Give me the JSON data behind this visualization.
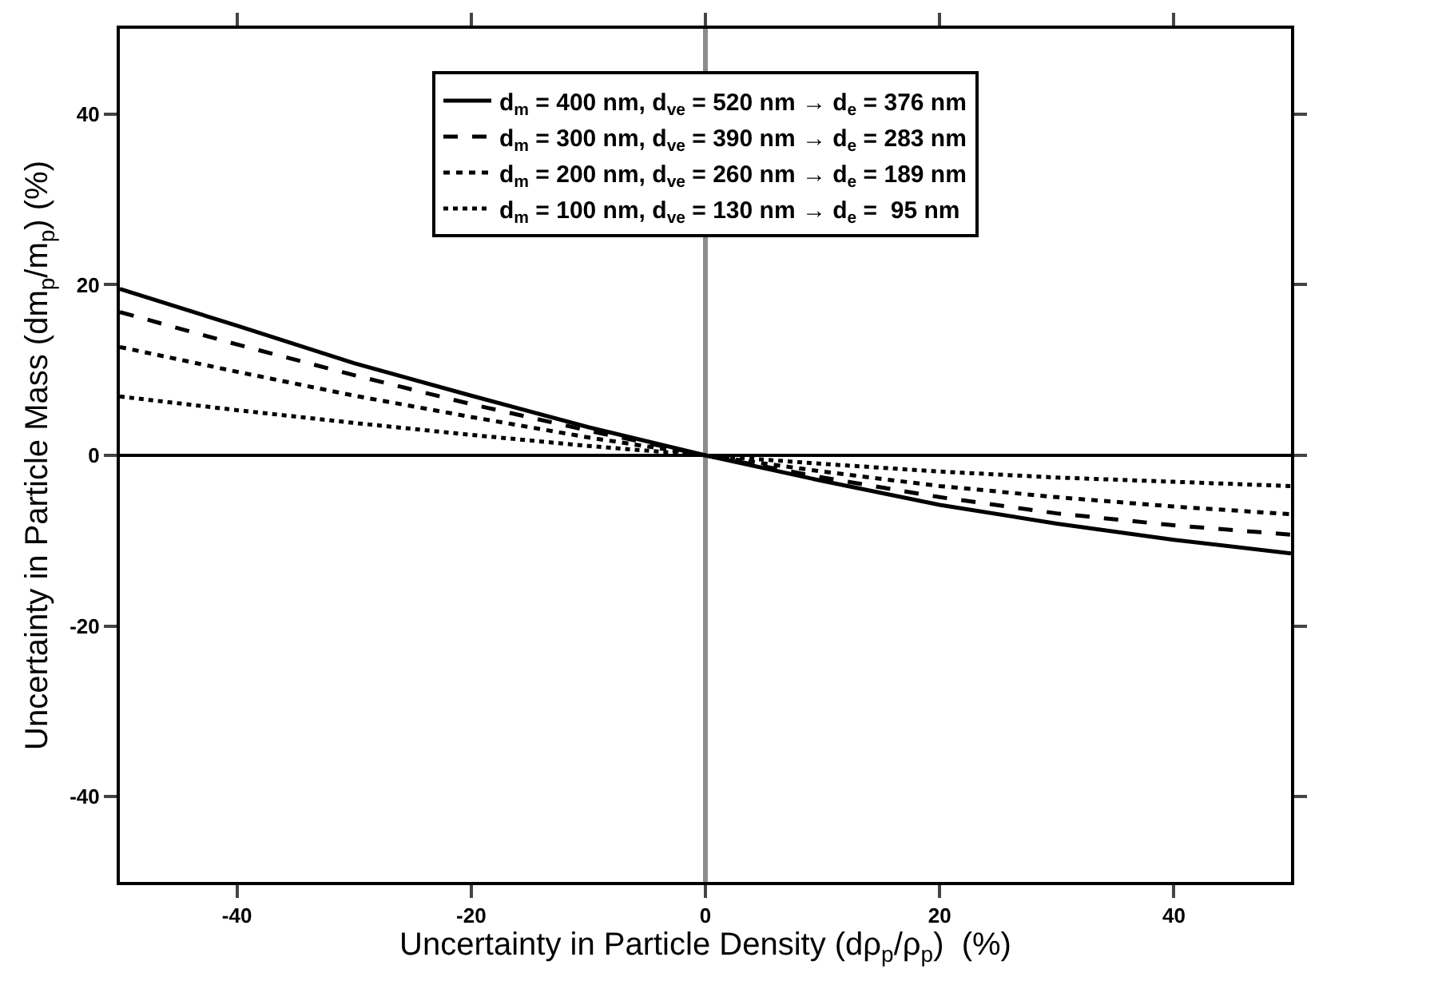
{
  "chart_data": {
    "type": "line",
    "xlabel": "Uncertainty in Particle Density (dρ$_{p}$/ρ$_{p}$)  (%)",
    "ylabel": "Uncertainty in Particle Mass (dm$_{p}$/m$_{p}$) (%)",
    "x": [
      -50,
      -40,
      -30,
      -20,
      -10,
      0,
      10,
      20,
      30,
      40,
      50
    ],
    "series": [
      {
        "name": "d$_{m}$ = 400 nm, d$_{ve}$ = 520 nm → d$_{e}$ = 376 nm",
        "color": "#000000",
        "line_style": "solid",
        "values": [
          19.5,
          15.2,
          10.8,
          7.0,
          3.3,
          0,
          -3.0,
          -5.8,
          -8.0,
          -9.9,
          -11.5
        ]
      },
      {
        "name": "d$_{m}$ = 300 nm, d$_{ve}$ = 390 nm → d$_{e}$ = 283 nm",
        "color": "#000000",
        "line_style": "dashed",
        "values": [
          16.8,
          13.0,
          9.4,
          6.0,
          2.9,
          0,
          -2.6,
          -4.9,
          -6.8,
          -8.2,
          -9.3
        ]
      },
      {
        "name": "d$_{m}$ = 200 nm, d$_{ve}$ = 260 nm → d$_{e}$ = 189 nm",
        "color": "#000000",
        "line_style": "dashed",
        "values": [
          12.7,
          9.8,
          7.0,
          4.5,
          2.1,
          0,
          -1.9,
          -3.6,
          -4.9,
          -6.0,
          -6.9
        ]
      },
      {
        "name": "d$_{m}$ = 100 nm, d$_{ve}$ = 130 nm → d$_{e}$ =  95 nm",
        "color": "#000000",
        "line_style": "dotted",
        "values": [
          6.9,
          5.3,
          3.8,
          2.4,
          1.1,
          0,
          -1.0,
          -1.9,
          -2.6,
          -3.1,
          -3.6
        ]
      }
    ],
    "xlim": [
      -50,
      50
    ],
    "xticks": [
      -40,
      -20,
      0,
      20,
      40
    ],
    "ylim": [
      -50,
      50
    ],
    "yticks": [
      -40,
      -20,
      0,
      20,
      40
    ],
    "grid": false,
    "legend": "top",
    "marker": "none",
    "ref_lines": [
      {
        "axis": "y",
        "value": 0,
        "color": "#000000"
      },
      {
        "axis": "x",
        "value": 0,
        "color": "#8c8c8c"
      }
    ]
  }
}
